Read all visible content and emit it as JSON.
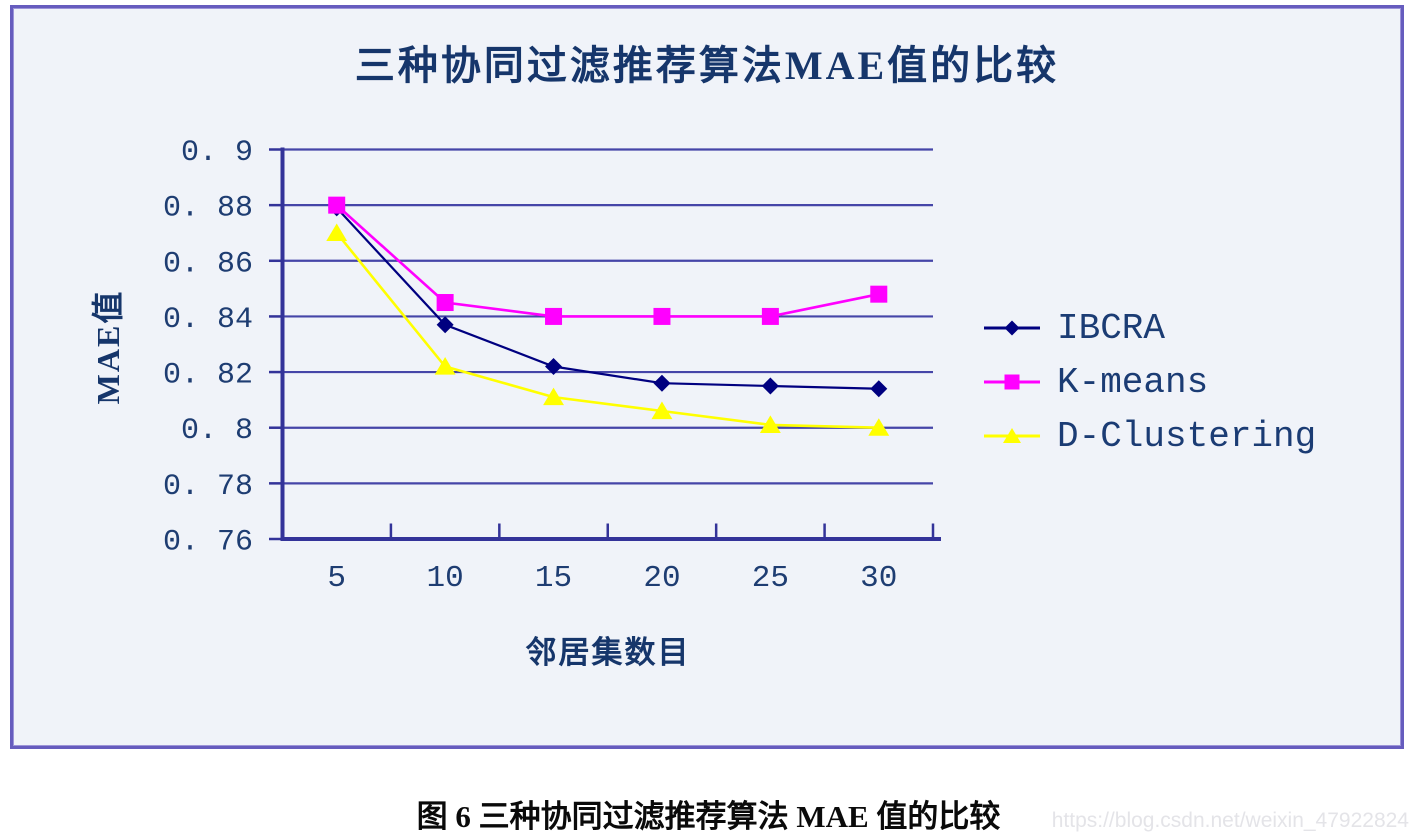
{
  "figure": {
    "title": "三种协同过滤推荐算法MAE值的比较",
    "caption": "图 6  三种协同过滤推荐算法 MAE 值的比较",
    "watermark": "https://blog.csdn.net/weixin_47922824"
  },
  "chart_data": {
    "type": "line",
    "title": "三种协同过滤推荐算法MAE值的比较",
    "xlabel": "邻居集数目",
    "ylabel": "MAE值",
    "categories": [
      5,
      10,
      15,
      20,
      25,
      30
    ],
    "xtick_labels": [
      "5",
      "10",
      "15",
      "20",
      "25",
      "30"
    ],
    "ytick_labels": [
      "0. 9",
      "0. 88",
      "0. 86",
      "0. 84",
      "0. 82",
      "0. 8",
      "0. 78",
      "0. 76"
    ],
    "ylim": [
      0.76,
      0.9
    ],
    "ytick_step": 0.02,
    "grid": "horizontal-only",
    "legend_position": "right",
    "series": [
      {
        "name": "IBCRA",
        "color": "#000080",
        "marker": "diamond",
        "values": [
          0.879,
          0.837,
          0.822,
          0.816,
          0.815,
          0.814
        ]
      },
      {
        "name": "K-means",
        "color": "#ff00ff",
        "marker": "square",
        "values": [
          0.88,
          0.845,
          0.84,
          0.84,
          0.84,
          0.848
        ]
      },
      {
        "name": "D-Clustering",
        "color": "#ffff00",
        "marker": "triangle",
        "values": [
          0.87,
          0.822,
          0.811,
          0.806,
          0.801,
          0.8
        ]
      }
    ]
  },
  "colors": {
    "chart_background": "#f0f3f9",
    "panel_border": "#665cbe",
    "grid_line": "#4545a8",
    "axis_line": "#333399",
    "title_text": "#16366b",
    "tick_text": "#1e3d72",
    "legend_text": "#1b3c74",
    "caption_text": "#0a0a0a",
    "watermark_text": "#e4e4e8"
  }
}
